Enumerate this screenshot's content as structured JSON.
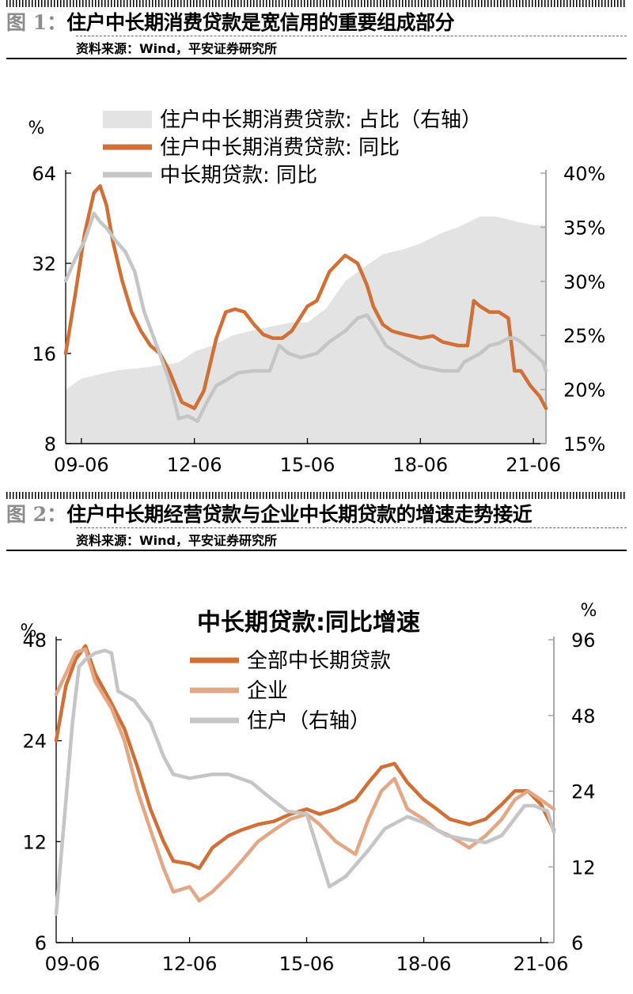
{
  "figure1": {
    "number": "图 1：",
    "title": "住户中长期消费贷款是宽信用的重要组成部分",
    "source": "资料来源：Wind，平安证券研究所"
  },
  "figure2": {
    "number": "图 2：",
    "title": "住户中长期经营贷款与企业中长期贷款的增速走势接近",
    "source": "资料来源：Wind，平安证券研究所"
  },
  "chart_data": [
    {
      "type": "line",
      "title": "",
      "ylabel": "%",
      "y2label": "",
      "y_scale": "log",
      "ylim": [
        8,
        64
      ],
      "y_ticks": [
        8,
        16,
        32,
        64
      ],
      "y2lim": [
        0.15,
        0.4
      ],
      "y2_ticks": [
        "15%",
        "20%",
        "25%",
        "30%",
        "35%",
        "40%"
      ],
      "x_ticks": [
        "09-06",
        "12-06",
        "15-06",
        "18-06",
        "21-06"
      ],
      "grid": false,
      "legend_position": "top-left",
      "series": [
        {
          "name": "住户中长期消费贷款: 占比（右轴）",
          "kind": "area",
          "axis": "right",
          "color": "#e3e3e3",
          "x": [
            "2009-01",
            "2009-06",
            "2010-01",
            "2010-06",
            "2011-01",
            "2011-06",
            "2012-01",
            "2012-06",
            "2013-01",
            "2013-06",
            "2014-01",
            "2014-06",
            "2015-01",
            "2015-06",
            "2015-12",
            "2016-06",
            "2017-01",
            "2017-06",
            "2018-01",
            "2018-06",
            "2019-01",
            "2019-06",
            "2020-01",
            "2020-06",
            "2021-01",
            "2021-06",
            "2021-10"
          ],
          "values": [
            0.2,
            0.21,
            0.215,
            0.218,
            0.22,
            0.222,
            0.225,
            0.235,
            0.242,
            0.25,
            0.255,
            0.258,
            0.262,
            0.262,
            0.275,
            0.3,
            0.315,
            0.325,
            0.33,
            0.335,
            0.345,
            0.35,
            0.36,
            0.36,
            0.355,
            0.352,
            0.352
          ]
        },
        {
          "name": "住户中长期消费贷款: 同比",
          "kind": "line",
          "axis": "left",
          "color": "#d07036",
          "x": [
            "2009-01",
            "2009-04",
            "2009-07",
            "2009-10",
            "2009-12",
            "2010-02",
            "2010-04",
            "2010-07",
            "2010-10",
            "2011-01",
            "2011-04",
            "2011-07",
            "2011-10",
            "2012-02",
            "2012-06",
            "2012-09",
            "2013-01",
            "2013-04",
            "2013-07",
            "2013-10",
            "2014-01",
            "2014-04",
            "2014-07",
            "2014-10",
            "2015-01",
            "2015-06",
            "2015-09",
            "2016-01",
            "2016-06",
            "2016-10",
            "2017-01",
            "2017-03",
            "2017-06",
            "2017-09",
            "2018-01",
            "2018-06",
            "2018-10",
            "2019-01",
            "2019-06",
            "2019-09",
            "2019-11",
            "2020-01",
            "2020-04",
            "2020-07",
            "2020-10",
            "2020-12",
            "2021-02",
            "2021-05",
            "2021-08",
            "2021-10"
          ],
          "values": [
            16,
            25,
            40,
            55,
            58,
            50,
            38,
            28,
            22,
            19,
            17,
            16,
            14,
            11,
            10.5,
            12,
            18,
            22,
            22.5,
            22,
            20,
            18.5,
            18,
            18,
            19,
            23,
            24,
            30,
            34,
            32,
            27,
            23,
            20,
            19,
            18.5,
            18,
            18.3,
            17.5,
            17,
            17,
            24,
            23,
            22,
            22,
            21,
            14,
            14,
            12.5,
            11.5,
            10.5
          ]
        },
        {
          "name": "中长期贷款: 同比",
          "kind": "line",
          "axis": "left",
          "color": "#c5c5c5",
          "x": [
            "2009-01",
            "2009-04",
            "2009-07",
            "2009-10",
            "2009-12",
            "2010-02",
            "2010-05",
            "2010-08",
            "2010-11",
            "2011-02",
            "2011-06",
            "2011-10",
            "2012-01",
            "2012-04",
            "2012-07",
            "2012-10",
            "2013-01",
            "2013-04",
            "2013-08",
            "2014-01",
            "2014-06",
            "2014-09",
            "2014-12",
            "2015-04",
            "2015-09",
            "2016-01",
            "2016-06",
            "2016-10",
            "2017-01",
            "2017-03",
            "2017-07",
            "2018-01",
            "2018-06",
            "2019-01",
            "2019-06",
            "2019-08",
            "2020-01",
            "2020-04",
            "2020-07",
            "2020-10",
            "2020-12",
            "2021-02",
            "2021-06",
            "2021-09",
            "2021-10"
          ],
          "values": [
            28,
            33,
            38,
            47,
            44,
            42,
            38,
            35,
            30,
            22,
            17,
            13,
            9.7,
            9.9,
            9.5,
            11,
            12.5,
            13,
            13.8,
            14,
            14,
            17,
            16,
            15.5,
            16,
            17.5,
            19,
            21,
            21.5,
            20,
            17,
            15.5,
            14.5,
            14,
            14,
            15,
            16,
            17,
            17.3,
            18,
            18,
            17.5,
            16,
            15,
            14
          ]
        }
      ]
    },
    {
      "type": "line",
      "title": "中长期贷款:同比增速",
      "ylabel": "%",
      "y2label": "%",
      "y_scale": "log",
      "ylim": [
        6,
        48
      ],
      "y_ticks": [
        6,
        12,
        24,
        48
      ],
      "y2lim": [
        6,
        96
      ],
      "y2_ticks": [
        6,
        12,
        24,
        48,
        96
      ],
      "x_ticks": [
        "09-06",
        "12-06",
        "15-06",
        "18-06",
        "21-06"
      ],
      "grid": false,
      "legend_position": "top-left",
      "series": [
        {
          "name": "全部中长期贷款",
          "axis": "left",
          "color": "#d07036",
          "x": [
            "2009-01",
            "2009-04",
            "2009-07",
            "2009-10",
            "2010-01",
            "2010-06",
            "2010-10",
            "2011-02",
            "2011-06",
            "2011-10",
            "2012-01",
            "2012-06",
            "2012-09",
            "2013-01",
            "2013-06",
            "2013-10",
            "2014-03",
            "2014-08",
            "2015-01",
            "2015-06",
            "2015-10",
            "2016-03",
            "2016-09",
            "2017-01",
            "2017-05",
            "2017-09",
            "2018-01",
            "2018-06",
            "2018-10",
            "2019-02",
            "2019-08",
            "2020-01",
            "2020-06",
            "2020-10",
            "2021-02",
            "2021-06",
            "2021-10"
          ],
          "values": [
            24,
            35,
            42,
            46,
            38,
            31,
            26,
            20,
            15,
            12,
            10.5,
            10.3,
            10,
            11.5,
            12.5,
            13,
            13.5,
            13.8,
            14.5,
            15,
            14.5,
            15,
            16,
            18,
            20,
            20.5,
            18,
            16,
            15,
            14,
            13.5,
            14,
            15.5,
            17,
            17,
            15.5,
            13
          ]
        },
        {
          "name": "企业",
          "axis": "left",
          "color": "#e3a785",
          "x": [
            "2009-01",
            "2009-04",
            "2009-07",
            "2009-10",
            "2010-01",
            "2010-06",
            "2010-10",
            "2011-02",
            "2011-06",
            "2011-10",
            "2012-01",
            "2012-06",
            "2012-09",
            "2013-01",
            "2013-06",
            "2013-10",
            "2014-03",
            "2014-08",
            "2015-01",
            "2015-06",
            "2015-10",
            "2016-03",
            "2016-09",
            "2017-01",
            "2017-05",
            "2017-09",
            "2018-01",
            "2018-06",
            "2018-10",
            "2019-02",
            "2019-08",
            "2020-01",
            "2020-06",
            "2020-10",
            "2021-02",
            "2021-06",
            "2021-10"
          ],
          "values": [
            33,
            38,
            44,
            45,
            36,
            30,
            24,
            17,
            13,
            10,
            8.5,
            8.8,
            8,
            8.5,
            9.5,
            10.5,
            12,
            13,
            14,
            14.5,
            13.5,
            12,
            11,
            14,
            17,
            18.5,
            15,
            14,
            13,
            12.5,
            11.5,
            12.5,
            14,
            16,
            17,
            16,
            15
          ]
        },
        {
          "name": "住户（右轴）",
          "axis": "right",
          "color": "#c5c5c5",
          "x": [
            "2009-01",
            "2009-04",
            "2009-06",
            "2009-08",
            "2009-10",
            "2010-01",
            "2010-04",
            "2010-06",
            "2010-08",
            "2011-01",
            "2011-06",
            "2011-10",
            "2012-01",
            "2012-06",
            "2013-01",
            "2013-06",
            "2014-01",
            "2014-06",
            "2014-12",
            "2015-06",
            "2016-01",
            "2016-06",
            "2017-01",
            "2017-06",
            "2018-01",
            "2018-06",
            "2019-01",
            "2019-06",
            "2020-01",
            "2020-06",
            "2021-01",
            "2021-04",
            "2021-08",
            "2021-10"
          ],
          "values": [
            7.8,
            22,
            45,
            75,
            80,
            85,
            87,
            85,
            60,
            55,
            45,
            33,
            28,
            27,
            28,
            28,
            26,
            23,
            20,
            19.5,
            10,
            11,
            14,
            17,
            19,
            18,
            16,
            15.5,
            15,
            16,
            21,
            21,
            20,
            16.5
          ]
        }
      ]
    }
  ]
}
